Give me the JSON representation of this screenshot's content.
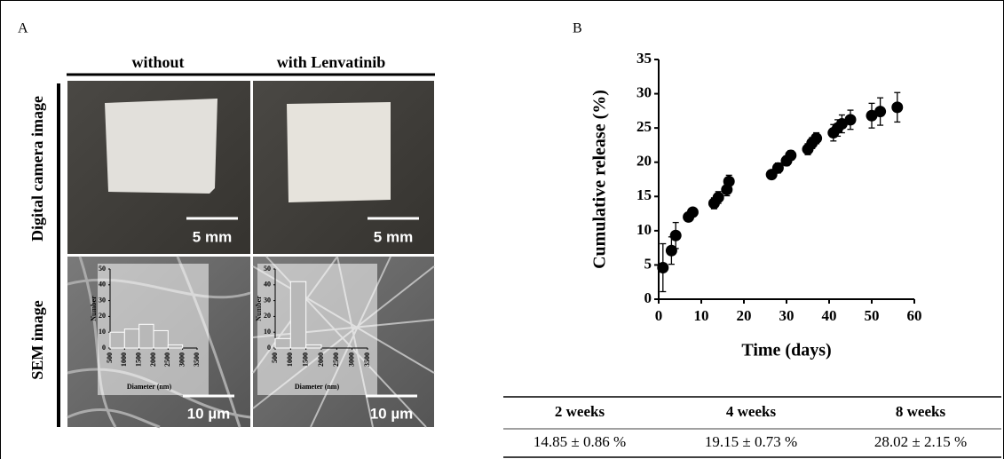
{
  "panel_a": {
    "label": "A",
    "columns": [
      "without",
      "with Lenvatinib"
    ],
    "rows": [
      "Digital camera image",
      "SEM image"
    ],
    "scale_labels": [
      "5 mm",
      "5 mm",
      "10 µm",
      "10 µm"
    ]
  },
  "panel_b": {
    "label": "B"
  },
  "chart_data": [
    {
      "type": "scatter",
      "xlabel": "Time (days)",
      "ylabel": "Cumulative release (%)",
      "xlim": [
        0,
        60
      ],
      "ylim": [
        0,
        35
      ],
      "xticks": [
        0,
        10,
        20,
        30,
        40,
        50,
        60
      ],
      "yticks": [
        0,
        5,
        10,
        15,
        20,
        25,
        30,
        35
      ],
      "series": [
        {
          "color": "#000000",
          "x": [
            1,
            3,
            4,
            7,
            8,
            13,
            14,
            16,
            16.5,
            26.5,
            28,
            30,
            31,
            35,
            36,
            37,
            41,
            42,
            43,
            45,
            50,
            52,
            56
          ],
          "values": [
            4.6,
            7.1,
            9.3,
            12,
            12.7,
            14,
            14.85,
            16,
            17.2,
            18.2,
            19.15,
            20.2,
            21,
            21.9,
            22.8,
            23.5,
            24.3,
            25,
            25.6,
            26.2,
            26.8,
            27.4,
            28.02
          ],
          "errors": [
            3.5,
            2,
            1.9,
            0.6,
            0.5,
            0.8,
            0.86,
            0.9,
            0.9,
            0.6,
            0.73,
            0.7,
            0.7,
            0.8,
            0.8,
            0.8,
            1.2,
            1.2,
            1.3,
            1.4,
            1.8,
            2,
            2.15
          ]
        }
      ]
    },
    {
      "type": "histogram",
      "xlabel": "Diameter (nm)",
      "ylabel": "Number",
      "color": "#b8b8b8",
      "bins": [
        500,
        1000,
        1500,
        2000,
        2500,
        3000,
        3500
      ],
      "values": [
        10,
        12,
        15,
        11,
        2,
        0
      ],
      "xlim": [
        500,
        3500
      ],
      "ylim": [
        0,
        50
      ],
      "xticks": [
        500,
        1000,
        1500,
        2000,
        2500,
        3000,
        3500
      ],
      "yticks": [
        0,
        10,
        20,
        30,
        40,
        50
      ]
    },
    {
      "type": "histogram",
      "xlabel": "Diameter (nm)",
      "ylabel": "Number",
      "color": "#b8b8b8",
      "bins": [
        500,
        1000,
        1500,
        2000,
        2500,
        3000,
        3500
      ],
      "values": [
        6,
        42,
        2,
        0,
        0,
        0
      ],
      "xlim": [
        500,
        3500
      ],
      "ylim": [
        0,
        50
      ],
      "xticks": [
        500,
        1000,
        1500,
        2000,
        2500,
        3000,
        3500
      ],
      "yticks": [
        0,
        10,
        20,
        30,
        40,
        50
      ]
    }
  ],
  "table": {
    "header": [
      "2 weeks",
      "4 weeks",
      "8 weeks"
    ],
    "rows": [
      [
        "14.85 ± 0.86 %",
        "19.15 ± 0.73 %",
        "28.02 ± 2.15 %"
      ]
    ]
  }
}
